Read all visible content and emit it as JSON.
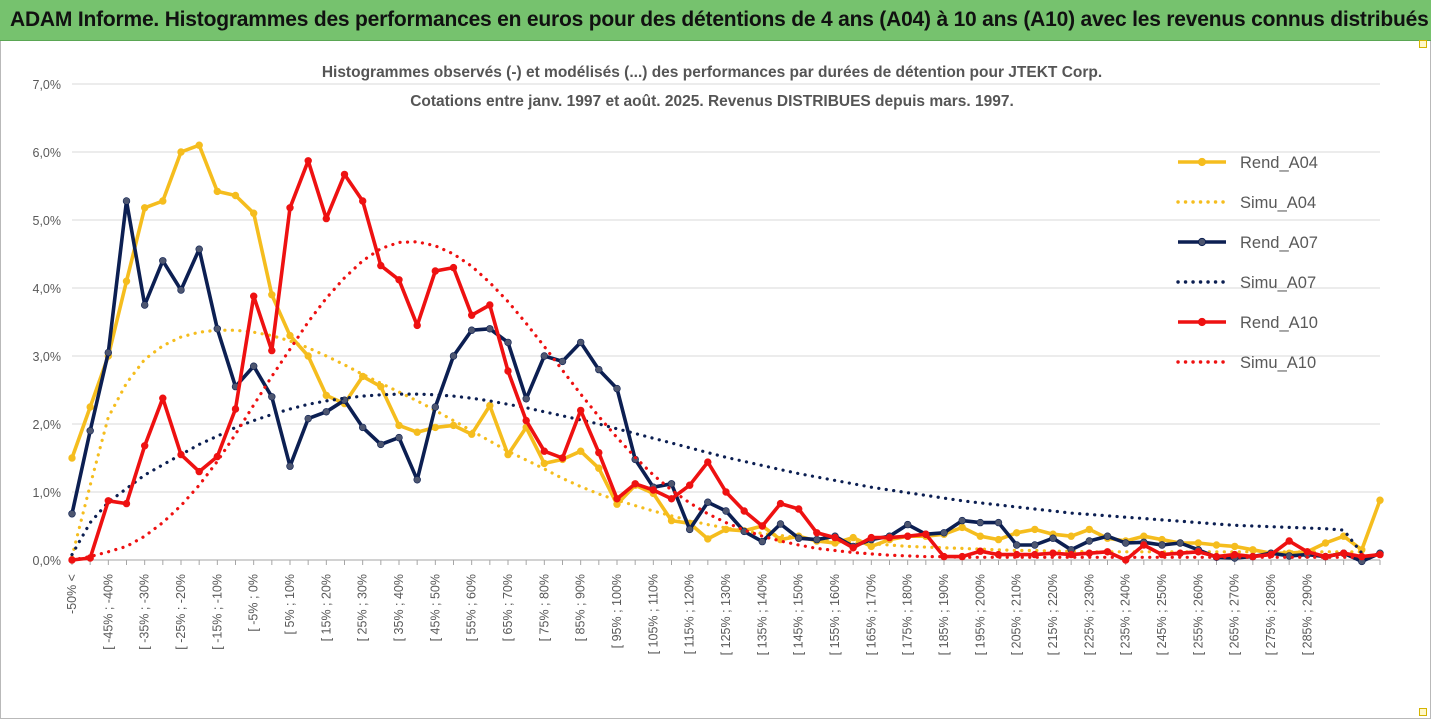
{
  "header": {
    "title": "ADAM Informe. Histogrammes des performances en euros pour des détentions de 4 ans (A04) à 10 ans (A10) avec les revenus connus distribués"
  },
  "chart_data": {
    "type": "line",
    "title": "Histogrammes observés (-) et modélisés (...) des performances par durées de détention pour JTEKT Corp.",
    "subtitle": "Cotations entre janv. 1997 et août. 2025. Revenus DISTRIBUES depuis mars. 1997.",
    "xlabel": "",
    "ylabel": "",
    "ylim": [
      0,
      7
    ],
    "y_ticks": [
      "0,0%",
      "1,0%",
      "2,0%",
      "3,0%",
      "4,0%",
      "5,0%",
      "6,0%",
      "7,0%"
    ],
    "grid": true,
    "legend_position": "right",
    "category_labels": [
      "-50% <",
      "[ -45% ; -40%",
      "[ -35% ; -30%",
      "[ -25% ; -20%",
      "[ -15% ; -10%",
      "[ -5% ; 0%",
      "[ 5% ; 10%",
      "[ 15% ; 20%",
      "[ 25% ; 30%",
      "[ 35% ; 40%",
      "[ 45% ; 50%",
      "[ 55% ; 60%",
      "[ 65% ; 70%",
      "[ 75% ; 80%",
      "[ 85% ; 90%",
      "[ 95% ; 100%",
      "[ 105% ; 110%",
      "[ 115% ; 120%",
      "[ 125% ; 130%",
      "[ 135% ; 140%",
      "[ 145% ; 150%",
      "[ 155% ; 160%",
      "[ 165% ; 170%",
      "[ 175% ; 180%",
      "[ 185% ; 190%",
      "[ 195% ; 200%",
      "[ 205% ; 210%",
      "[ 215% ; 220%",
      "[ 225% ; 230%",
      "[ 235% ; 240%",
      "[ 245% ; 250%",
      "[ 255% ; 260%",
      "[ 265% ; 270%",
      "[ 275% ; 280%",
      "[ 285% ; 290%"
    ],
    "series": [
      {
        "name": "Rend_A04",
        "style": "solid",
        "color": "#f5bd1e",
        "values": [
          1.5,
          2.25,
          3.0,
          4.1,
          5.18,
          5.28,
          6.0,
          6.1,
          5.42,
          5.36,
          5.1,
          3.9,
          3.3,
          3.0,
          2.42,
          2.3,
          2.7,
          2.55,
          1.98,
          1.88,
          1.95,
          1.98,
          1.85,
          2.27,
          1.55,
          1.95,
          1.42,
          1.48,
          1.6,
          1.35,
          0.82,
          1.1,
          0.98,
          0.58,
          0.54,
          0.31,
          0.45,
          0.43,
          0.5,
          0.3,
          0.35,
          0.28,
          0.25,
          0.33,
          0.2,
          0.3,
          0.35,
          0.35,
          0.38,
          0.48,
          0.35,
          0.3,
          0.4,
          0.45,
          0.38,
          0.35,
          0.45,
          0.32,
          0.28,
          0.35,
          0.3,
          0.25,
          0.25,
          0.22,
          0.2,
          0.15,
          0.1,
          0.1,
          0.12,
          0.25,
          0.35,
          0.15,
          0.88
        ]
      },
      {
        "name": "Simu_A04",
        "style": "dotted",
        "color": "#f5bd1e",
        "values": [
          0.05,
          1.1,
          2.1,
          2.6,
          2.95,
          3.15,
          3.28,
          3.35,
          3.38,
          3.38,
          3.35,
          3.3,
          3.22,
          3.12,
          3.0,
          2.87,
          2.73,
          2.6,
          2.47,
          2.34,
          2.2,
          2.05,
          1.9,
          1.75,
          1.6,
          1.47,
          1.34,
          1.2,
          1.08,
          0.97,
          0.88,
          0.8,
          0.72,
          0.65,
          0.58,
          0.52,
          0.47,
          0.43,
          0.39,
          0.36,
          0.33,
          0.3,
          0.28,
          0.26,
          0.24,
          0.22,
          0.2,
          0.19,
          0.18,
          0.17,
          0.16,
          0.15,
          0.14,
          0.14,
          0.13,
          0.13,
          0.12,
          0.12,
          0.12,
          0.12,
          0.12,
          0.12,
          0.12,
          0.12,
          0.12,
          0.12,
          0.12,
          0.12,
          0.12,
          0.12,
          0.12,
          0.12
        ]
      },
      {
        "name": "Rend_A07",
        "style": "solid",
        "color": "#0c1f52",
        "values": [
          0.68,
          1.9,
          3.05,
          5.28,
          3.75,
          4.4,
          3.97,
          4.57,
          3.4,
          2.55,
          2.85,
          2.4,
          1.38,
          2.08,
          2.18,
          2.35,
          1.95,
          1.7,
          1.8,
          1.18,
          2.25,
          3.0,
          3.38,
          3.4,
          3.2,
          2.37,
          3.0,
          2.92,
          3.2,
          2.8,
          2.52,
          1.48,
          1.07,
          1.12,
          0.45,
          0.85,
          0.72,
          0.42,
          0.27,
          0.53,
          0.32,
          0.3,
          0.35,
          0.2,
          0.3,
          0.35,
          0.52,
          0.38,
          0.4,
          0.58,
          0.55,
          0.55,
          0.22,
          0.22,
          0.32,
          0.15,
          0.28,
          0.35,
          0.25,
          0.26,
          0.22,
          0.25,
          0.15,
          0.04,
          0.03,
          0.05,
          0.1,
          0.06,
          0.08,
          0.05,
          0.1,
          -0.02,
          0.1
        ]
      },
      {
        "name": "Simu_A07",
        "style": "dotted",
        "color": "#0c1f52",
        "values": [
          0.08,
          0.55,
          0.85,
          1.05,
          1.25,
          1.4,
          1.55,
          1.7,
          1.82,
          1.95,
          2.05,
          2.14,
          2.22,
          2.29,
          2.34,
          2.38,
          2.41,
          2.43,
          2.44,
          2.44,
          2.43,
          2.41,
          2.38,
          2.34,
          2.29,
          2.24,
          2.18,
          2.12,
          2.06,
          2.0,
          1.93,
          1.86,
          1.79,
          1.72,
          1.65,
          1.58,
          1.51,
          1.45,
          1.39,
          1.33,
          1.27,
          1.22,
          1.17,
          1.12,
          1.07,
          1.03,
          0.99,
          0.95,
          0.91,
          0.87,
          0.84,
          0.81,
          0.78,
          0.75,
          0.72,
          0.69,
          0.67,
          0.65,
          0.63,
          0.61,
          0.59,
          0.57,
          0.55,
          0.53,
          0.51,
          0.5,
          0.49,
          0.48,
          0.47,
          0.46,
          0.44,
          0.1
        ]
      },
      {
        "name": "Rend_A10",
        "style": "solid",
        "color": "#ee1111",
        "values": [
          0.0,
          0.03,
          0.87,
          0.83,
          1.68,
          2.38,
          1.55,
          1.3,
          1.52,
          2.22,
          3.88,
          3.08,
          5.18,
          5.87,
          5.02,
          5.67,
          5.28,
          4.33,
          4.12,
          3.45,
          4.25,
          4.3,
          3.6,
          3.75,
          2.78,
          2.05,
          1.6,
          1.5,
          2.2,
          1.58,
          0.9,
          1.12,
          1.03,
          0.9,
          1.1,
          1.44,
          1.0,
          0.72,
          0.5,
          0.83,
          0.75,
          0.4,
          0.33,
          0.18,
          0.33,
          0.33,
          0.35,
          0.38,
          0.05,
          0.05,
          0.13,
          0.08,
          0.08,
          0.08,
          0.1,
          0.08,
          0.1,
          0.12,
          0.0,
          0.22,
          0.08,
          0.1,
          0.12,
          0.05,
          0.08,
          0.05,
          0.08,
          0.28,
          0.12,
          0.05,
          0.1,
          0.05,
          0.08
        ]
      },
      {
        "name": "Simu_A10",
        "style": "dotted",
        "color": "#ee1111",
        "values": [
          0.0,
          0.05,
          0.12,
          0.2,
          0.35,
          0.55,
          0.8,
          1.1,
          1.45,
          1.85,
          2.28,
          2.7,
          3.1,
          3.5,
          3.85,
          4.15,
          4.4,
          4.58,
          4.67,
          4.68,
          4.62,
          4.5,
          4.32,
          4.08,
          3.8,
          3.48,
          3.14,
          2.79,
          2.44,
          2.11,
          1.8,
          1.51,
          1.25,
          1.03,
          0.84,
          0.68,
          0.55,
          0.44,
          0.35,
          0.28,
          0.22,
          0.17,
          0.14,
          0.11,
          0.09,
          0.07,
          0.06,
          0.05,
          0.05,
          0.04,
          0.04,
          0.04,
          0.04,
          0.04,
          0.04,
          0.04,
          0.04,
          0.04,
          0.04,
          0.04,
          0.04,
          0.04,
          0.04,
          0.04,
          0.04,
          0.04,
          0.04,
          0.04,
          0.04,
          0.04,
          0.04,
          0.04
        ]
      }
    ]
  }
}
